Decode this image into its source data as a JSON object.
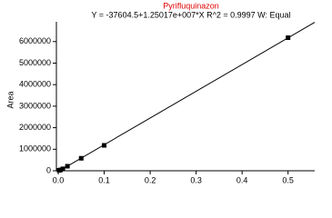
{
  "chart_data": {
    "type": "scatter",
    "title": "Pyrifluquinazon",
    "subtitle": "Y = -37604.5+1.25017e+007*X   R^2 = 0.9997   W: Equal",
    "y_label": "Area",
    "series": [
      {
        "color": "#000000",
        "x": [
          0.002,
          0.005,
          0.01,
          0.02,
          0.05,
          0.1,
          0.5
        ],
        "values": [
          20000,
          40000,
          90000,
          210000,
          580000,
          1180000,
          6180000
        ]
      }
    ],
    "xlim": [
      -0.004,
      0.558
    ],
    "ylim": [
      0,
      6750000
    ],
    "xticks": [
      {
        "value": 0,
        "label": "0.0"
      },
      0.1,
      0.2,
      0.3,
      0.4,
      0.5
    ],
    "yticks": [
      0,
      1000000,
      2000000,
      3000000,
      4000000,
      5000000,
      6000000
    ],
    "title_color": "#e00000"
  }
}
